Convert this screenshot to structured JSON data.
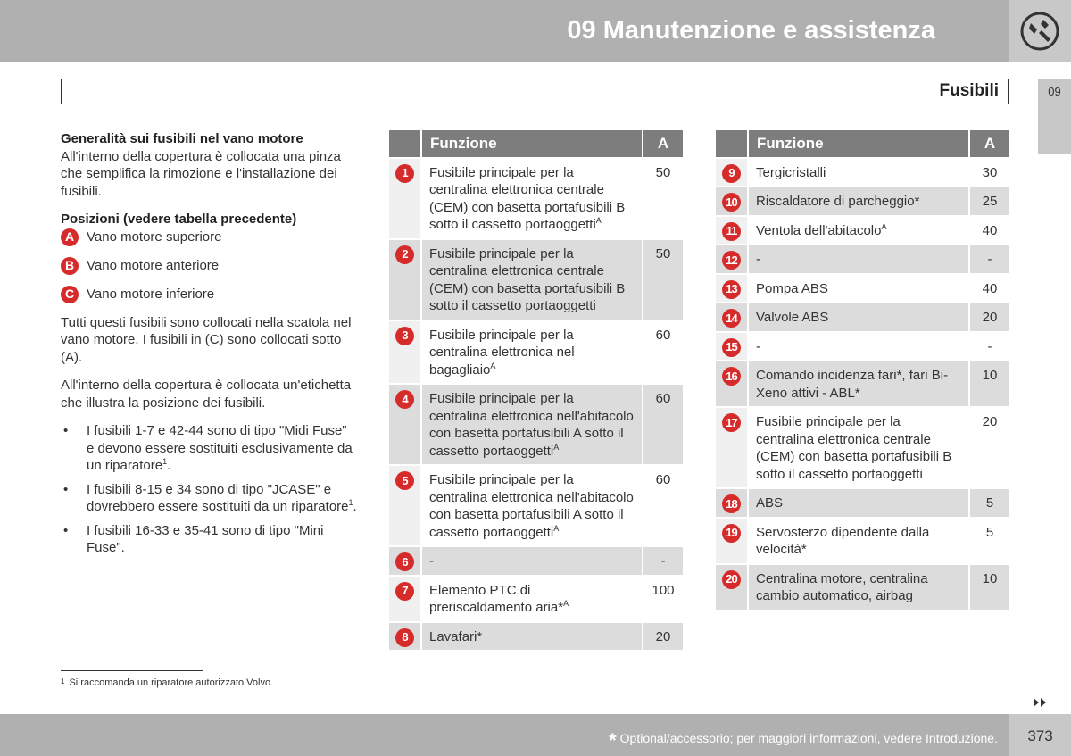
{
  "header": {
    "chapter": "09 Manutenzione e assistenza",
    "section": "Fusibili",
    "tab": "09"
  },
  "left": {
    "heading1": "Generalità sui fusibili nel vano motore",
    "para1": "All'interno della copertura è collocata una pinza che semplifica la rimozione e l'installazione dei fusibili.",
    "heading2": "Posizioni (vedere tabella precedente)",
    "positions": [
      {
        "letter": "A",
        "text": "Vano motore superiore"
      },
      {
        "letter": "B",
        "text": "Vano motore anteriore"
      },
      {
        "letter": "C",
        "text": "Vano motore inferiore"
      }
    ],
    "para2": "Tutti questi fusibili sono collocati nella scatola nel vano motore. I fusibili in (C) sono collocati sotto (A).",
    "para3": "All'interno della copertura è collocata un'etichetta che illustra la posizione dei fusibili.",
    "bullets": [
      {
        "text": "I fusibili 1-7 e 42-44 sono di tipo \"Midi Fuse\" e devono essere sostituiti esclusivamente da un riparatore",
        "sup": "1",
        "end": "."
      },
      {
        "text": "I fusibili 8-15 e 34 sono di tipo \"JCASE\" e dovrebbero essere sostituiti da un riparatore",
        "sup": "1",
        "end": "."
      },
      {
        "text": "I fusibili 16-33 e 35-41 sono di tipo \"Mini Fuse\".",
        "sup": null,
        "end": null
      }
    ]
  },
  "tables": [
    {
      "headers": [
        "Funzione",
        "A"
      ],
      "rows": [
        {
          "num": "1",
          "function": "Fusibile principale per la centralina elettronica centrale (CEM) con basetta portafusibili B sotto il cassetto portaoggetti",
          "sup": "A",
          "amps": 50
        },
        {
          "num": "2",
          "function": "Fusibile principale per la centralina elettronica centrale (CEM) con basetta portafusibili B sotto il cassetto portaoggetti",
          "sup": null,
          "amps": 50
        },
        {
          "num": "3",
          "function": "Fusibile principale per la centralina elettronica nel bagagliaio",
          "sup": "A",
          "amps": 60
        },
        {
          "num": "4",
          "function": "Fusibile principale per la centralina elettronica nell'abitacolo con basetta portafusibili A sotto il cassetto portaoggetti",
          "sup": "A",
          "amps": 60
        },
        {
          "num": "5",
          "function": "Fusibile principale per la centralina elettronica nell'abitacolo con basetta portafusibili A sotto il cassetto portaoggetti",
          "sup": "A",
          "amps": 60
        },
        {
          "num": "6",
          "function": "-",
          "sup": null,
          "amps": "-"
        },
        {
          "num": "7",
          "function": "Elemento PTC di preriscaldamento aria*",
          "sup": "A",
          "amps": 100
        },
        {
          "num": "8",
          "function": "Lavafari*",
          "sup": null,
          "amps": 20
        }
      ]
    },
    {
      "headers": [
        "Funzione",
        "A"
      ],
      "rows": [
        {
          "num": "9",
          "function": "Tergicristalli",
          "sup": null,
          "amps": 30
        },
        {
          "num": "10",
          "function": "Riscaldatore di parcheggio*",
          "sup": null,
          "amps": 25
        },
        {
          "num": "11",
          "function": "Ventola dell'abitacolo",
          "sup": "A",
          "amps": 40
        },
        {
          "num": "12",
          "function": "-",
          "sup": null,
          "amps": "-"
        },
        {
          "num": "13",
          "function": "Pompa ABS",
          "sup": null,
          "amps": 40
        },
        {
          "num": "14",
          "function": "Valvole ABS",
          "sup": null,
          "amps": 20
        },
        {
          "num": "15",
          "function": "-",
          "sup": null,
          "amps": "-"
        },
        {
          "num": "16",
          "function": "Comando incidenza fari*, fari Bi-Xeno attivi - ABL*",
          "sup": null,
          "amps": 10
        },
        {
          "num": "17",
          "function": "Fusibile principale per la centralina elettronica centrale (CEM) con basetta portafusibili B sotto il cassetto portaoggetti",
          "sup": null,
          "amps": 20
        },
        {
          "num": "18",
          "function": "ABS",
          "sup": null,
          "amps": 5
        },
        {
          "num": "19",
          "function": "Servosterzo dipendente dalla velocità*",
          "sup": null,
          "amps": 5
        },
        {
          "num": "20",
          "function": "Centralina motore, centralina cambio automatico, airbag",
          "sup": null,
          "amps": 10
        }
      ]
    }
  ],
  "footnote": {
    "mark": "1",
    "text": "Si raccomanda un riparatore autorizzato Volvo."
  },
  "footer": {
    "asterisk": "*",
    "text": "Optional/accessorio; per maggiori informazioni, vedere Introduzione.",
    "page": "373"
  }
}
